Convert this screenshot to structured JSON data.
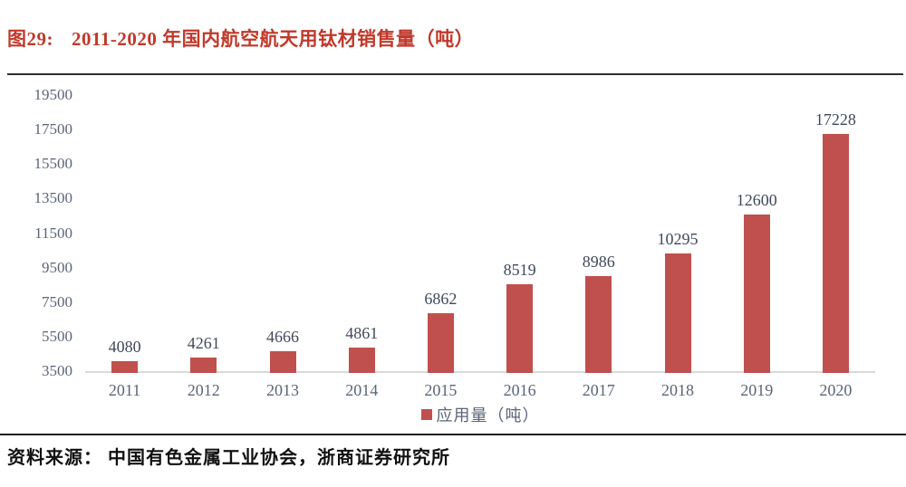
{
  "figure": {
    "label": "图29:",
    "title": "2011-2020 年国内航空航天用钛材销售量（吨）",
    "source": "资料来源： 中国有色金属工业协会，浙商证券研究所"
  },
  "chart_data": {
    "type": "bar",
    "title": "2011-2020 年国内航空航天用钛材销售量（吨）",
    "categories": [
      "2011",
      "2012",
      "2013",
      "2014",
      "2015",
      "2016",
      "2017",
      "2018",
      "2019",
      "2020"
    ],
    "values": [
      4080,
      4261,
      4666,
      4861,
      6862,
      8519,
      8986,
      10295,
      12600,
      17228
    ],
    "series_name": "应用量（吨）",
    "legend": [
      "应用量（吨）"
    ],
    "legend_position": "bottom",
    "data_labels": true,
    "grid": false,
    "xlabel": "",
    "ylabel": "",
    "ylim": [
      3500,
      19500
    ],
    "y_ticks": [
      3500,
      5500,
      7500,
      9500,
      11500,
      13500,
      15500,
      17500,
      19500
    ]
  },
  "colors": {
    "bar": "#C0504D",
    "title_text": "#C0392B",
    "tick_text": "#5A6578",
    "data_label_text": "#3F4A5A",
    "axis_line": "#D9D9D9"
  }
}
